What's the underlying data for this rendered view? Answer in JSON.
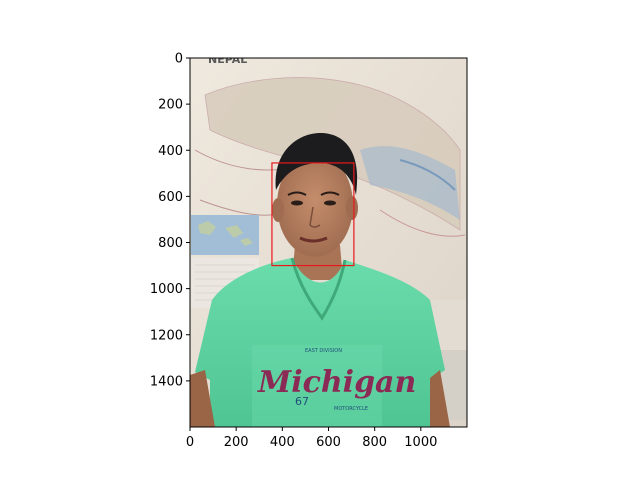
{
  "chart_data": {
    "type": "image",
    "title": "",
    "xlabel": "",
    "ylabel": "",
    "xlim": [
      0,
      1200
    ],
    "ylim": [
      1600,
      0
    ],
    "y_inverted": true,
    "grid": false,
    "xticks": [
      0,
      200,
      400,
      600,
      800,
      1000
    ],
    "yticks": [
      0,
      200,
      400,
      600,
      800,
      1000,
      1200,
      1400
    ],
    "image": {
      "description": "photo of a young man in a green Michigan t-shirt standing in front of a wall map",
      "map_title": "NEPAL",
      "shirt_text": "Michigan",
      "shirt_number": "67",
      "shirt_small_text_top": "EAST DIVISION",
      "shirt_small_text_side": "MOTORCYCLE"
    },
    "annotations": [
      {
        "type": "rectangle",
        "label": "face-bounding-box",
        "x": [
          355,
          710
        ],
        "y": [
          455,
          900
        ],
        "color": "#e8191b"
      }
    ]
  },
  "colors": {
    "shirt": "#5fd3a2",
    "map_bg": "#e9e3d8",
    "skin": "#b98363",
    "hair": "#1c1b1d",
    "box": "#e8191b"
  }
}
